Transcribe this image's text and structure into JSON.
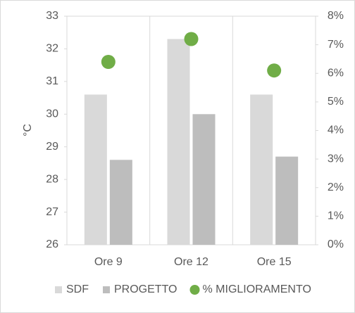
{
  "chart_data": {
    "type": "bar",
    "y_label": "°C",
    "categories": [
      "Ore 9",
      "Ore 12",
      "Ore 15"
    ],
    "series": [
      {
        "name": "SDF",
        "type": "bar",
        "color": "#d9d9d9",
        "values": [
          30.6,
          32.3,
          30.6
        ]
      },
      {
        "name": "PROGETTO",
        "type": "bar",
        "color": "#bdbdbd",
        "values": [
          28.6,
          30.0,
          28.7
        ]
      },
      {
        "name": "% MIGLIORAMENTO",
        "type": "scatter",
        "color": "#70ad47",
        "axis": "y2",
        "values": [
          6.4,
          7.2,
          6.1
        ]
      }
    ],
    "ylim": [
      26,
      33
    ],
    "yticks": [
      26,
      27,
      28,
      29,
      30,
      31,
      32,
      33
    ],
    "y2lim": [
      0,
      8
    ],
    "y2ticks": [
      {
        "value": 0,
        "label": "0%"
      },
      {
        "value": 1,
        "label": "1%"
      },
      {
        "value": 2,
        "label": "2%"
      },
      {
        "value": 3,
        "label": "3%"
      },
      {
        "value": 4,
        "label": "4%"
      },
      {
        "value": 5,
        "label": "5%"
      },
      {
        "value": 6,
        "label": "6%"
      },
      {
        "value": 7,
        "label": "7%"
      },
      {
        "value": 8,
        "label": "8%"
      }
    ],
    "legend": "bottom"
  }
}
